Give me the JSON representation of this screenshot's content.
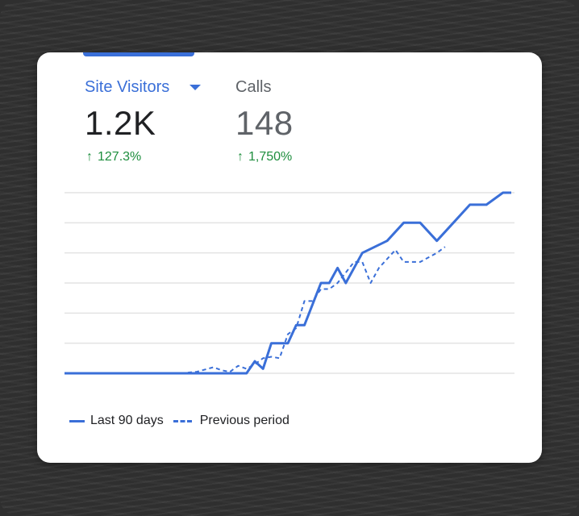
{
  "metrics": {
    "visitors": {
      "label": "Site Visitors",
      "value": "1.2K",
      "change": "127.3%",
      "selected": true
    },
    "calls": {
      "label": "Calls",
      "value": "148",
      "change": "1,750%",
      "selected": false
    }
  },
  "icons": {
    "dropdown": "caret-down-icon",
    "trend": "arrow-up-icon"
  },
  "colors": {
    "accent": "#3a6fd8",
    "positive": "#1e8e3e",
    "grid": "#e3e3e3"
  },
  "legend": {
    "current": "Last 90 days",
    "previous": "Previous period"
  },
  "chart_data": {
    "type": "line",
    "xlabel": "",
    "ylabel": "",
    "ylim": [
      0,
      6
    ],
    "yticks": 7,
    "grid": true,
    "legend_position": "bottom-left",
    "series": [
      {
        "name": "Last 90 days",
        "style": "solid",
        "color": "#3a6fd8",
        "points": [
          [
            0,
            0
          ],
          [
            2,
            0
          ],
          [
            4,
            0
          ],
          [
            6,
            0
          ],
          [
            8,
            0
          ],
          [
            10,
            0
          ],
          [
            12,
            0
          ],
          [
            14,
            0
          ],
          [
            16,
            0
          ],
          [
            18,
            0
          ],
          [
            20,
            0
          ],
          [
            22,
            0
          ],
          [
            23,
            0.4
          ],
          [
            24,
            0.15
          ],
          [
            25,
            1
          ],
          [
            27,
            1
          ],
          [
            28,
            1.6
          ],
          [
            29,
            1.6
          ],
          [
            31,
            3
          ],
          [
            32,
            3
          ],
          [
            33,
            3.5
          ],
          [
            34,
            3
          ],
          [
            36,
            4
          ],
          [
            39,
            4.4
          ],
          [
            41,
            5
          ],
          [
            43,
            5
          ],
          [
            45,
            4.4
          ],
          [
            47,
            5
          ],
          [
            49,
            5.6
          ],
          [
            51,
            5.6
          ],
          [
            53,
            6
          ],
          [
            54,
            6
          ]
        ]
      },
      {
        "name": "Previous period",
        "style": "dashed",
        "color": "#3a6fd8",
        "points": [
          [
            0,
            0
          ],
          [
            2,
            0
          ],
          [
            4,
            0
          ],
          [
            6,
            0
          ],
          [
            8,
            0
          ],
          [
            10,
            0
          ],
          [
            12,
            0
          ],
          [
            14,
            0
          ],
          [
            16,
            0.05
          ],
          [
            18,
            0.2
          ],
          [
            19,
            0.1
          ],
          [
            20,
            0.05
          ],
          [
            21,
            0.25
          ],
          [
            22,
            0.15
          ],
          [
            23,
            0.3
          ],
          [
            24,
            0.5
          ],
          [
            25,
            0.55
          ],
          [
            26,
            0.5
          ],
          [
            27,
            1.3
          ],
          [
            28,
            1.5
          ],
          [
            29,
            2.4
          ],
          [
            30,
            2.4
          ],
          [
            31,
            2.8
          ],
          [
            32,
            2.8
          ],
          [
            33,
            3
          ],
          [
            35,
            3.7
          ],
          [
            36,
            3.7
          ],
          [
            37,
            3
          ],
          [
            38,
            3.5
          ],
          [
            40,
            4.1
          ],
          [
            41,
            3.7
          ],
          [
            43,
            3.7
          ],
          [
            45,
            4
          ],
          [
            46,
            4.2
          ]
        ]
      }
    ]
  }
}
